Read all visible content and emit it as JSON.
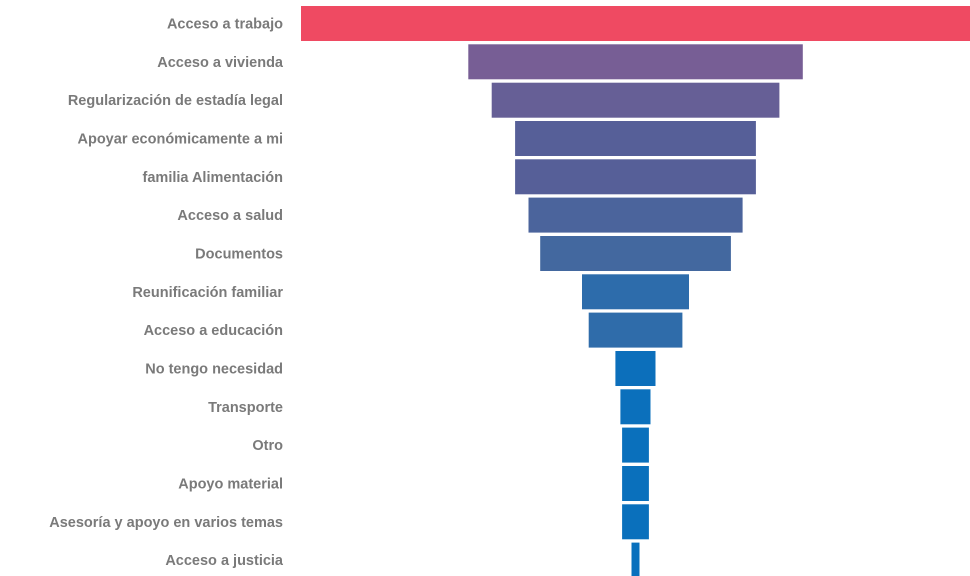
{
  "chart_data": {
    "type": "bar",
    "orientation": "horizontal-centered-funnel",
    "title": "",
    "xlabel": "",
    "ylabel": "",
    "categories": [
      "Acceso a trabajo",
      "Acceso a vivienda",
      "Regularización de estadía legal",
      "Apoyar económicamente a mi",
      "familia Alimentación",
      "Acceso a salud",
      "Documentos",
      "Reunificación familiar",
      "Acceso a educación",
      "No tengo necesidad",
      "Transporte",
      "Otro",
      "Apoyo material",
      "Asesoría y apoyo en varios temas",
      "Acceso a justicia"
    ],
    "values": [
      100,
      50,
      43,
      36,
      36,
      32,
      28.5,
      16,
      14,
      6,
      4.5,
      4,
      4,
      4,
      1.2
    ],
    "colors": [
      "#ef4a62",
      "#775e95",
      "#665f96",
      "#565f98",
      "#565f98",
      "#4b649c",
      "#43689f",
      "#2d6cab",
      "#2f6caa",
      "#0c6fbb",
      "#0b70bc",
      "#0a70bc",
      "#0a70bc",
      "#0a70bc",
      "#0870bd"
    ],
    "grid": false,
    "legend": "none"
  }
}
